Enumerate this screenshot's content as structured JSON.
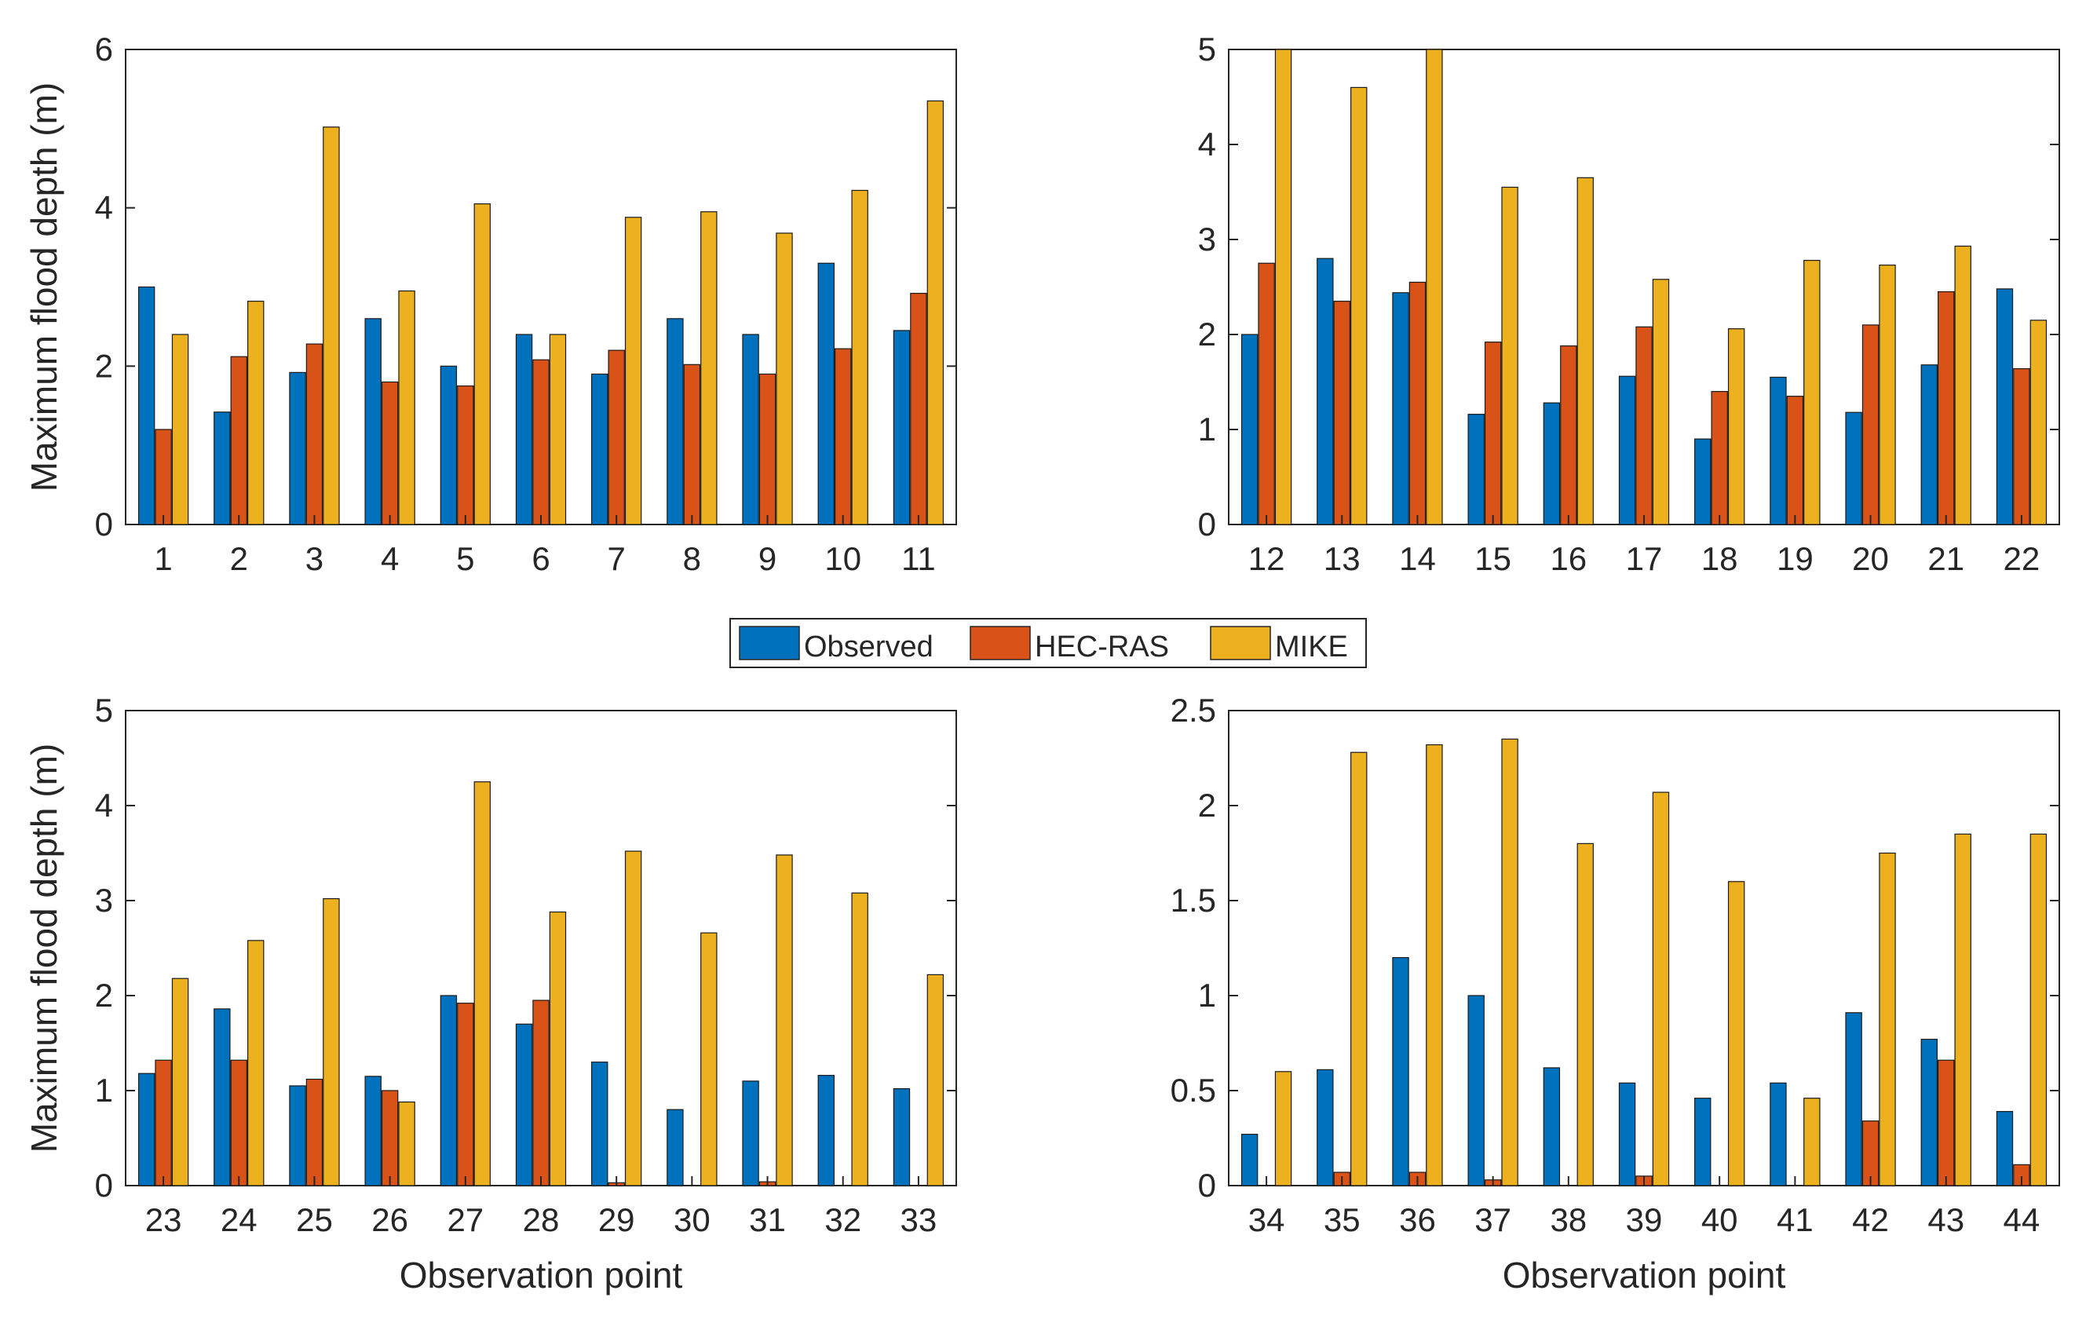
{
  "colors": {
    "observed": "#0072BD",
    "hecras": "#D95319",
    "mike": "#EDB120",
    "axis": "#262626",
    "background": "#FFFFFF"
  },
  "legend": {
    "items": [
      {
        "label": "Observed",
        "color": "#0072BD"
      },
      {
        "label": "HEC-RAS",
        "color": "#D95319"
      },
      {
        "label": "MIKE",
        "color": "#EDB120"
      }
    ]
  },
  "chart_data": [
    {
      "type": "bar",
      "title": "",
      "xlabel": "",
      "ylabel": "Maximum flood depth (m)",
      "ylim": [
        0,
        6
      ],
      "yticks": [
        "0",
        "2",
        "4",
        "6"
      ],
      "categories": [
        "1",
        "2",
        "3",
        "4",
        "5",
        "6",
        "7",
        "8",
        "9",
        "10",
        "11"
      ],
      "series": [
        {
          "name": "Observed",
          "values": [
            3.0,
            1.42,
            1.92,
            2.6,
            2.0,
            2.4,
            1.9,
            2.6,
            2.4,
            3.3,
            2.45
          ]
        },
        {
          "name": "HEC-RAS",
          "values": [
            1.2,
            2.12,
            2.28,
            1.8,
            1.75,
            2.08,
            2.2,
            2.02,
            1.9,
            2.22,
            2.92
          ]
        },
        {
          "name": "MIKE",
          "values": [
            2.4,
            2.82,
            5.02,
            2.95,
            4.05,
            2.4,
            3.88,
            3.95,
            3.68,
            4.22,
            5.35
          ]
        }
      ]
    },
    {
      "type": "bar",
      "title": "",
      "xlabel": "",
      "ylabel": "",
      "ylim": [
        0,
        5
      ],
      "yticks": [
        "0",
        "1",
        "2",
        "3",
        "4",
        "5"
      ],
      "categories": [
        "12",
        "13",
        "14",
        "15",
        "16",
        "17",
        "18",
        "19",
        "20",
        "21",
        "22"
      ],
      "series": [
        {
          "name": "Observed",
          "values": [
            2.0,
            2.8,
            2.44,
            1.16,
            1.28,
            1.56,
            0.9,
            1.55,
            1.18,
            1.68,
            2.48
          ]
        },
        {
          "name": "HEC-RAS",
          "values": [
            2.75,
            2.35,
            2.55,
            1.92,
            1.88,
            2.08,
            1.4,
            1.35,
            2.1,
            2.45,
            1.64
          ]
        },
        {
          "name": "MIKE",
          "values": [
            5.0,
            4.6,
            5.0,
            3.55,
            3.65,
            2.58,
            2.06,
            2.78,
            2.73,
            2.93,
            2.15
          ]
        }
      ]
    },
    {
      "type": "bar",
      "title": "",
      "xlabel": "Observation point",
      "ylabel": "Maximum flood depth (m)",
      "ylim": [
        0,
        5
      ],
      "yticks": [
        "0",
        "1",
        "2",
        "3",
        "4",
        "5"
      ],
      "categories": [
        "23",
        "24",
        "25",
        "26",
        "27",
        "28",
        "29",
        "30",
        "31",
        "32",
        "33"
      ],
      "series": [
        {
          "name": "Observed",
          "values": [
            1.18,
            1.86,
            1.05,
            1.15,
            2.0,
            1.7,
            1.3,
            0.8,
            1.1,
            1.16,
            1.02
          ]
        },
        {
          "name": "HEC-RAS",
          "values": [
            1.32,
            1.32,
            1.12,
            1.0,
            1.92,
            1.95,
            0.03,
            0.0,
            0.04,
            0.0,
            0.0
          ]
        },
        {
          "name": "MIKE",
          "values": [
            2.18,
            2.58,
            3.02,
            0.88,
            4.25,
            2.88,
            3.52,
            2.66,
            3.48,
            3.08,
            2.22
          ]
        }
      ]
    },
    {
      "type": "bar",
      "title": "",
      "xlabel": "Observation point",
      "ylabel": "",
      "ylim": [
        0,
        2.5
      ],
      "yticks": [
        "0",
        "0.5",
        "1",
        "1.5",
        "2",
        "2.5"
      ],
      "categories": [
        "34",
        "35",
        "36",
        "37",
        "38",
        "39",
        "40",
        "41",
        "42",
        "43",
        "44"
      ],
      "series": [
        {
          "name": "Observed",
          "values": [
            0.27,
            0.61,
            1.2,
            1.0,
            0.62,
            0.54,
            0.46,
            0.54,
            0.91,
            0.77,
            0.39
          ]
        },
        {
          "name": "HEC-RAS",
          "values": [
            0.0,
            0.07,
            0.07,
            0.03,
            0.0,
            0.05,
            0.0,
            0.0,
            0.34,
            0.66,
            0.11
          ]
        },
        {
          "name": "MIKE",
          "values": [
            0.6,
            2.28,
            2.32,
            2.35,
            1.8,
            2.07,
            1.6,
            0.46,
            1.75,
            1.85,
            1.85
          ]
        }
      ]
    }
  ]
}
